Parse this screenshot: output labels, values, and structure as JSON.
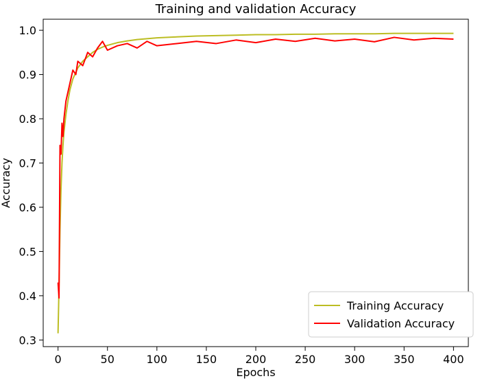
{
  "chart_data": {
    "type": "line",
    "title": "Training and validation Accuracy",
    "xlabel": "Epochs",
    "ylabel": "Accuracy",
    "xlim": [
      -15,
      415
    ],
    "ylim": [
      0.285,
      1.025
    ],
    "xticks": [
      0,
      50,
      100,
      150,
      200,
      250,
      300,
      350,
      400
    ],
    "yticks": [
      0.3,
      0.4,
      0.5,
      0.6,
      0.7,
      0.8,
      0.9,
      1.0
    ],
    "ytick_labels": [
      "0.3",
      "0.4",
      "0.5",
      "0.6",
      "0.7",
      "0.8",
      "0.9",
      "1.0"
    ],
    "grid": false,
    "legend_position": "lower-right",
    "series": [
      {
        "name": "Training Accuracy",
        "color": "#bcbd22",
        "x": [
          0,
          1,
          2,
          3,
          4,
          5,
          6,
          8,
          10,
          12,
          15,
          18,
          20,
          25,
          30,
          35,
          40,
          45,
          50,
          60,
          70,
          80,
          90,
          100,
          120,
          140,
          160,
          180,
          200,
          220,
          240,
          260,
          280,
          300,
          320,
          340,
          360,
          380,
          400
        ],
        "y": [
          0.315,
          0.42,
          0.55,
          0.64,
          0.7,
          0.74,
          0.77,
          0.81,
          0.84,
          0.865,
          0.89,
          0.905,
          0.915,
          0.93,
          0.94,
          0.95,
          0.957,
          0.962,
          0.966,
          0.972,
          0.976,
          0.979,
          0.981,
          0.983,
          0.985,
          0.987,
          0.988,
          0.989,
          0.99,
          0.99,
          0.991,
          0.991,
          0.992,
          0.992,
          0.992,
          0.993,
          0.993,
          0.993,
          0.993
        ]
      },
      {
        "name": "Validation Accuracy",
        "color": "#ff0000",
        "x": [
          0,
          1,
          2,
          3,
          4,
          5,
          6,
          8,
          10,
          12,
          15,
          18,
          20,
          25,
          30,
          35,
          40,
          45,
          50,
          60,
          70,
          80,
          90,
          100,
          120,
          140,
          160,
          180,
          200,
          220,
          240,
          260,
          280,
          300,
          320,
          340,
          360,
          380,
          400
        ],
        "y": [
          0.43,
          0.395,
          0.74,
          0.72,
          0.79,
          0.76,
          0.8,
          0.84,
          0.86,
          0.88,
          0.91,
          0.9,
          0.93,
          0.92,
          0.95,
          0.94,
          0.96,
          0.975,
          0.955,
          0.965,
          0.97,
          0.96,
          0.975,
          0.965,
          0.97,
          0.975,
          0.97,
          0.978,
          0.972,
          0.98,
          0.975,
          0.982,
          0.976,
          0.98,
          0.974,
          0.984,
          0.978,
          0.982,
          0.98
        ]
      }
    ]
  }
}
